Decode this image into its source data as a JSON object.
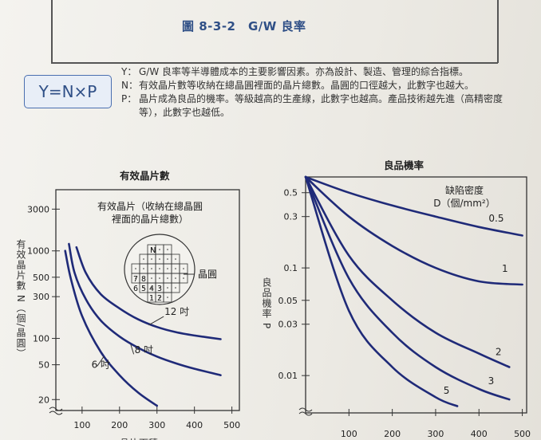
{
  "figure": {
    "title": "圖 8-3-2　G/W 良率",
    "formula": "Y=N×P",
    "definitions": [
      {
        "key": "Y：",
        "text": "G/W 良率等半導體成本的主要影響因素。亦為設計、製造、管理的綜合指標。"
      },
      {
        "key": "N：",
        "text": "有效晶片數等收納在總晶圓裡面的晶片總數。晶圓的口徑越大，此數字也越大。"
      },
      {
        "key": "P：",
        "text": "晶片成為良品的機率。等級越高的生產線，此數字也越高。產品技術越先進（高精密度等），此數字也越低。"
      }
    ]
  },
  "chart_data": [
    {
      "type": "line",
      "title": "有效晶片數",
      "ylabel": "有效晶片數 N（個/晶圓）",
      "xlabel": "晶片面積",
      "xticks": [
        "100",
        "200",
        "300",
        "400",
        "500"
      ],
      "yticks": [
        "20",
        "50",
        "100",
        "300",
        "500",
        "1000",
        "3000"
      ],
      "yscale": "log",
      "xlim": [
        30,
        520
      ],
      "ylim": [
        15,
        5000
      ],
      "inset": {
        "title": "有效晶片（收納在總晶圓裡面的晶片總數）",
        "wafer_label": "晶圓",
        "n_label": "N",
        "chip_numbers": [
          "7",
          "8",
          "6",
          "5",
          "4",
          "3",
          "1",
          "2"
        ]
      },
      "series": [
        {
          "name": "6 吋",
          "x": [
            55,
            70,
            100,
            150,
            200,
            250,
            300
          ],
          "y": [
            1000,
            480,
            180,
            70,
            38,
            24,
            17
          ]
        },
        {
          "name": "8 吋",
          "x": [
            65,
            80,
            110,
            150,
            200,
            250,
            300,
            350,
            400,
            470
          ],
          "y": [
            1200,
            560,
            280,
            160,
            105,
            78,
            62,
            52,
            45,
            38
          ]
        },
        {
          "name": "12 吋",
          "x": [
            85,
            110,
            150,
            200,
            250,
            300,
            350,
            400,
            470
          ],
          "y": [
            1100,
            560,
            320,
            220,
            165,
            135,
            118,
            108,
            98
          ]
        }
      ],
      "colors": {
        "line": "#1f2a78"
      }
    },
    {
      "type": "line",
      "title": "良品機率",
      "ylabel": "良品機率 P",
      "xlabel": "",
      "legend_title": "缺陷密度 D（個/mm²）",
      "xticks": [
        "100",
        "200",
        "300",
        "400",
        "500"
      ],
      "yticks": [
        "0.01",
        "0.03",
        "0.05",
        "0.1",
        "0.3",
        "0.5"
      ],
      "yscale": "log",
      "xlim": [
        0,
        510
      ],
      "ylim": [
        0.0045,
        0.7
      ],
      "series": [
        {
          "name": "0.5",
          "x": [
            0,
            100,
            200,
            300,
            400,
            500
          ],
          "y": [
            0.7,
            0.5,
            0.38,
            0.3,
            0.24,
            0.2
          ]
        },
        {
          "name": "1",
          "x": [
            0,
            100,
            200,
            300,
            400,
            500
          ],
          "y": [
            0.7,
            0.3,
            0.16,
            0.1,
            0.075,
            0.07
          ]
        },
        {
          "name": "2",
          "x": [
            0,
            100,
            200,
            300,
            400,
            470
          ],
          "y": [
            0.7,
            0.13,
            0.05,
            0.025,
            0.016,
            0.012
          ]
        },
        {
          "name": "3",
          "x": [
            0,
            100,
            200,
            300,
            400,
            470
          ],
          "y": [
            0.7,
            0.08,
            0.025,
            0.012,
            0.0075,
            0.006
          ]
        },
        {
          "name": "5",
          "x": [
            0,
            100,
            200,
            300,
            350
          ],
          "y": [
            0.7,
            0.04,
            0.012,
            0.0063,
            0.0052
          ]
        }
      ],
      "colors": {
        "line": "#1f2a78"
      }
    }
  ]
}
